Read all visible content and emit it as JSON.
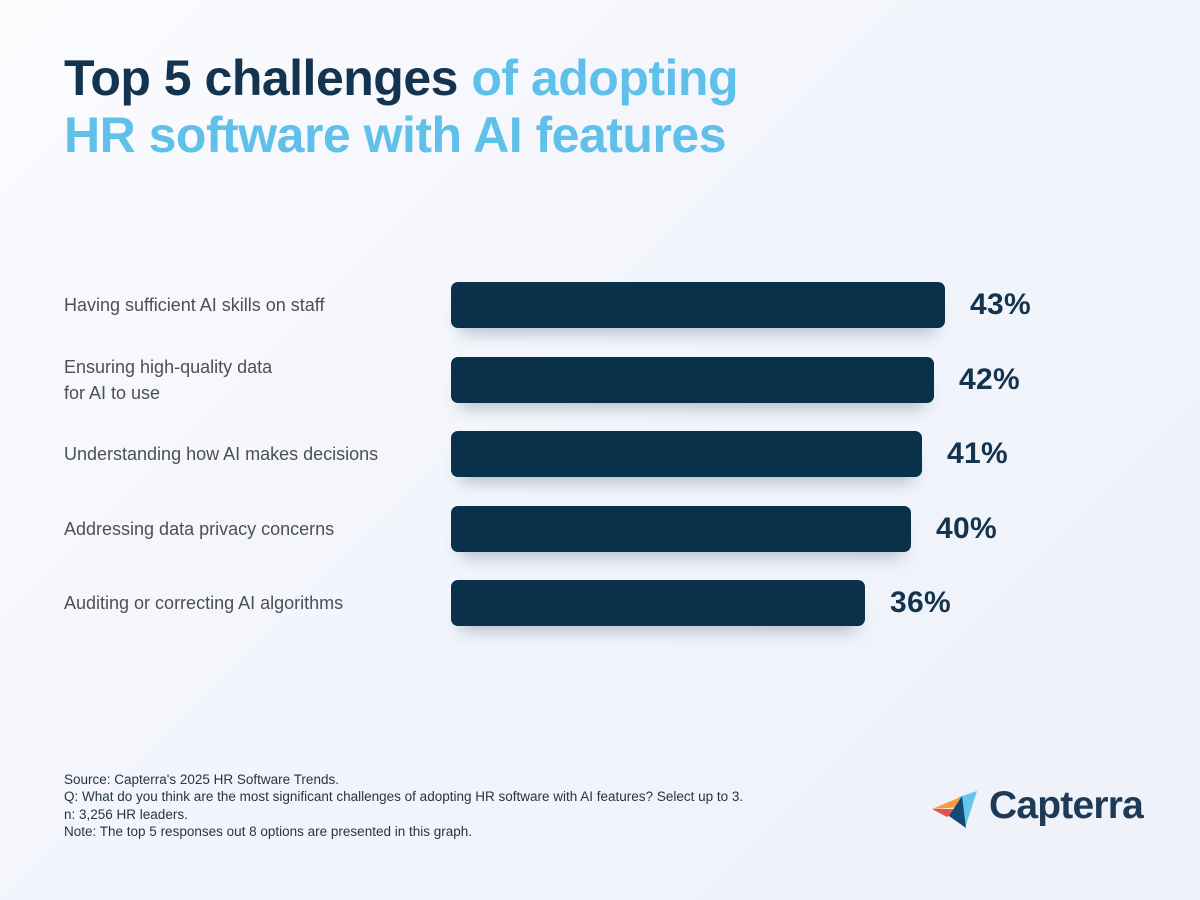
{
  "header": {
    "title_line1_dark": "Top 5 challenges",
    "title_line1_light": "of adopting",
    "title_line2_light": "HR software with AI features"
  },
  "chart_data": {
    "type": "bar",
    "orientation": "horizontal",
    "title": "Top 5 challenges of adopting HR software with AI features",
    "categories": [
      "Having sufficient AI skills on staff",
      "Ensuring high-quality data\nfor AI to use",
      "Understanding how AI makes decisions",
      "Addressing data privacy concerns",
      "Auditing or correcting AI algorithms"
    ],
    "values": [
      43,
      42,
      41,
      40,
      36
    ],
    "value_labels": [
      "43%",
      "42%",
      "41%",
      "40%",
      "36%"
    ],
    "unit": "%",
    "xlim": [
      0,
      43
    ],
    "grid": false,
    "legend": false,
    "data_labels": true,
    "bar_color": "#093149"
  },
  "footer": {
    "source_lines": [
      "Source: Capterra's 2025 HR Software Trends.",
      "Q: What do you think are the most significant challenges of adopting HR software with AI features? Select up to 3.",
      "n: 3,256 HR leaders.",
      "Note: The top 5 responses out 8 options are presented in this graph."
    ],
    "logo_text": "Capterra"
  },
  "colors": {
    "background_start": "#fbfcfe",
    "background_end": "#eff1fa",
    "title_dark": "#14334f",
    "title_accent": "#5fc0e9",
    "bar": "#093149",
    "label_text": "#4c4f58",
    "value_text": "#14334f",
    "footer_text": "#263445",
    "logo_navy": "#1e3a56",
    "logo_navy_mark": "#134a73",
    "logo_orange": "#f79c36",
    "logo_red": "#e0544c",
    "logo_lightblue": "#68c5e9"
  }
}
